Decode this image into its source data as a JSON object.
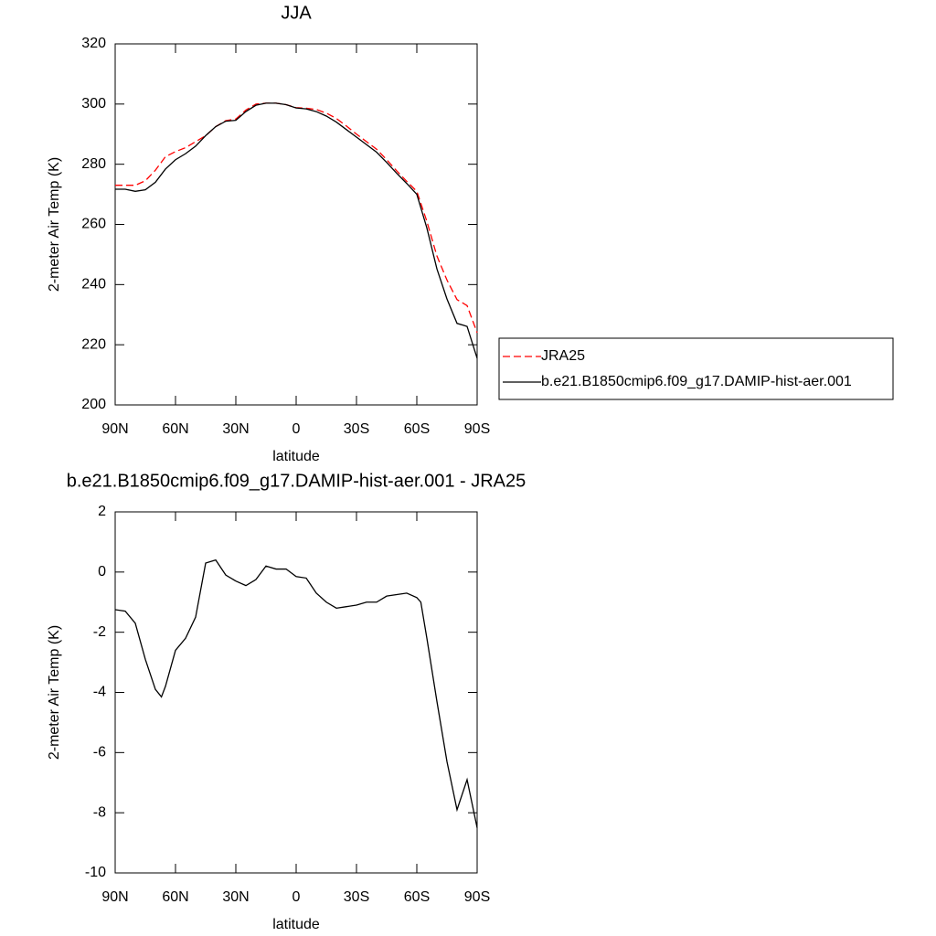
{
  "chart_data": [
    {
      "type": "line",
      "title": "JJA",
      "xlabel": "latitude",
      "ylabel": "2-meter Air Temp (K)",
      "x": [
        90,
        85,
        80,
        75,
        70,
        65,
        60,
        55,
        50,
        45,
        40,
        35,
        30,
        25,
        20,
        15,
        10,
        5,
        0,
        -5,
        -10,
        -15,
        -20,
        -25,
        -30,
        -35,
        -40,
        -45,
        -50,
        -55,
        -60,
        -65,
        -70,
        -75,
        -80,
        -85,
        -90
      ],
      "series": [
        {
          "name": "JRA25",
          "color": "#ff0000",
          "dash": true,
          "values": [
            273,
            273,
            273,
            274.5,
            278,
            282.5,
            284.2,
            285.5,
            287.5,
            289.5,
            292.5,
            294.5,
            295,
            298,
            300,
            300.3,
            300.3,
            299.8,
            298.8,
            298.6,
            298.2,
            297,
            295.2,
            292.7,
            290,
            287.5,
            285,
            281.5,
            277.8,
            274.3,
            271,
            261,
            249.5,
            241.5,
            235,
            233,
            224
          ]
        },
        {
          "name": "b.e21.B1850cmip6.f09_g17.DAMIP-hist-aer.001",
          "color": "#000000",
          "dash": false,
          "values": [
            271.7,
            271.7,
            271,
            271.5,
            274,
            278.4,
            281.5,
            283.5,
            286,
            289.5,
            292.5,
            294.3,
            294.6,
            297.5,
            299.6,
            300.3,
            300.3,
            299.8,
            298.7,
            298.4,
            297.5,
            296,
            294,
            291.5,
            289,
            286.5,
            284,
            280.6,
            277,
            273.6,
            270,
            258.8,
            245.2,
            235.2,
            227.1,
            226.1,
            215.5
          ]
        }
      ],
      "xlim": [
        90,
        -90
      ],
      "ylim": [
        200,
        320
      ],
      "xticks": [
        {
          "value": 90,
          "label": "90N"
        },
        {
          "value": 60,
          "label": "60N"
        },
        {
          "value": 30,
          "label": "30N"
        },
        0,
        {
          "value": -30,
          "label": "30S"
        },
        {
          "value": -60,
          "label": "60S"
        },
        {
          "value": -90,
          "label": "90S"
        }
      ],
      "yticks": [
        200,
        220,
        240,
        260,
        280,
        300,
        320
      ],
      "legend": "right"
    },
    {
      "type": "line",
      "title": "b.e21.B1850cmip6.f09_g17.DAMIP-hist-aer.001 - JRA25",
      "xlabel": "latitude",
      "ylabel": "2-meter Air Temp (K)",
      "x": [
        90,
        85,
        80,
        75,
        70,
        67,
        65,
        60,
        55,
        50,
        45,
        40,
        35,
        30,
        25,
        20,
        15,
        10,
        5,
        0,
        -5,
        -10,
        -15,
        -20,
        -25,
        -30,
        -35,
        -40,
        -45,
        -50,
        -55,
        -60,
        -62,
        -65,
        -70,
        -75,
        -80,
        -85,
        -90
      ],
      "values": [
        -1.25,
        -1.3,
        -1.7,
        -2.9,
        -3.9,
        -4.15,
        -3.8,
        -2.6,
        -2.2,
        -1.5,
        0.3,
        0.4,
        -0.1,
        -0.3,
        -0.45,
        -0.25,
        0.2,
        0.1,
        0.1,
        -0.15,
        -0.2,
        -0.7,
        -1.0,
        -1.2,
        -1.15,
        -1.1,
        -1.0,
        -1.0,
        -0.8,
        -0.75,
        -0.7,
        -0.85,
        -1.0,
        -2.2,
        -4.3,
        -6.3,
        -7.9,
        -6.9,
        -8.5
      ],
      "color": "#000000",
      "xlim": [
        90,
        -90
      ],
      "ylim": [
        -10,
        2
      ],
      "xticks": [
        {
          "value": 90,
          "label": "90N"
        },
        {
          "value": 60,
          "label": "60N"
        },
        {
          "value": 30,
          "label": "30N"
        },
        0,
        {
          "value": -30,
          "label": "30S"
        },
        {
          "value": -60,
          "label": "60S"
        },
        {
          "value": -90,
          "label": "90S"
        }
      ],
      "yticks": [
        -10,
        -8,
        -6,
        -4,
        -2,
        0,
        2
      ]
    }
  ]
}
